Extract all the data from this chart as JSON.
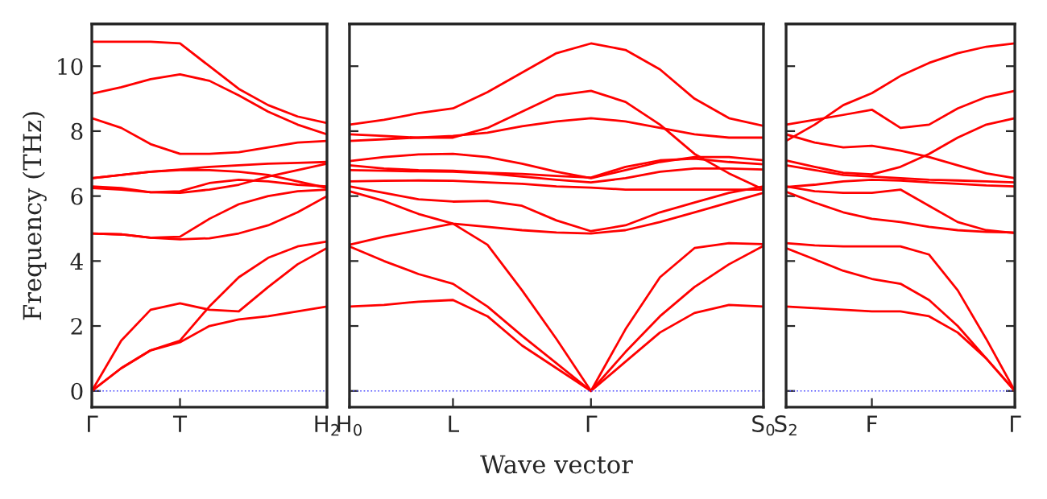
{
  "chart_data": [
    {
      "type": "line",
      "ylabel": "Frequency (THz)",
      "categories": [
        "Γ",
        null,
        null,
        "T",
        null,
        null,
        null,
        null,
        "H$_{2}$"
      ],
      "ylim": [
        -0.5,
        11.3
      ],
      "yticks": [
        0,
        2,
        4,
        6,
        8,
        10
      ],
      "ref_lines": [
        {
          "axis": "y",
          "value": 0,
          "color": "#4444ff",
          "line_style": "dotted"
        }
      ],
      "grid": false,
      "marker": "none",
      "line_style": "solid",
      "series": [
        {
          "color": "#ff0000",
          "values": [
            0,
            0.7,
            1.25,
            1.5,
            2.0,
            2.2,
            2.3,
            2.45,
            2.6
          ]
        },
        {
          "color": "#ff0000",
          "values": [
            0,
            0.7,
            1.25,
            1.55,
            2.6,
            3.5,
            4.1,
            4.45,
            4.6
          ]
        },
        {
          "color": "#ff0000",
          "values": [
            0,
            1.55,
            2.5,
            2.7,
            2.5,
            2.45,
            3.2,
            3.9,
            4.4
          ]
        },
        {
          "color": "#ff0000",
          "values": [
            4.85,
            4.82,
            4.72,
            4.67,
            4.7,
            4.85,
            5.1,
            5.5,
            6.0
          ]
        },
        {
          "color": "#ff0000",
          "values": [
            4.85,
            4.82,
            4.72,
            4.75,
            5.3,
            5.75,
            6.0,
            6.15,
            6.2
          ]
        },
        {
          "color": "#ff0000",
          "values": [
            6.25,
            6.2,
            6.12,
            6.15,
            6.4,
            6.5,
            6.45,
            6.35,
            6.3
          ]
        },
        {
          "color": "#ff0000",
          "values": [
            6.3,
            6.25,
            6.12,
            6.1,
            6.2,
            6.35,
            6.6,
            6.8,
            7.0
          ]
        },
        {
          "color": "#ff0000",
          "values": [
            6.55,
            6.65,
            6.75,
            6.8,
            6.8,
            6.75,
            6.65,
            6.45,
            6.25
          ]
        },
        {
          "color": "#ff0000",
          "values": [
            6.55,
            6.65,
            6.75,
            6.82,
            6.9,
            6.95,
            7.0,
            7.02,
            7.05
          ]
        },
        {
          "color": "#ff0000",
          "values": [
            8.4,
            8.1,
            7.6,
            7.3,
            7.3,
            7.35,
            7.5,
            7.65,
            7.7
          ]
        },
        {
          "color": "#ff0000",
          "values": [
            9.15,
            9.35,
            9.6,
            9.75,
            9.55,
            9.1,
            8.6,
            8.2,
            7.9
          ]
        },
        {
          "color": "#ff0000",
          "values": [
            10.75,
            10.75,
            10.75,
            10.7,
            10.0,
            9.3,
            8.8,
            8.45,
            8.25
          ]
        }
      ]
    },
    {
      "type": "line",
      "xlabel": "Wave vector",
      "categories": [
        "H$_{0}$",
        null,
        null,
        "L",
        null,
        null,
        null,
        "Γ",
        null,
        null,
        null,
        null,
        "S$_{0}$"
      ],
      "ylim": [
        -0.5,
        11.3
      ],
      "yticks": [
        0,
        2,
        4,
        6,
        8,
        10
      ],
      "tick_labels": "x",
      "ref_lines": [
        {
          "axis": "y",
          "value": 0,
          "color": "#4444ff",
          "line_style": "dotted"
        }
      ],
      "grid": false,
      "marker": "none",
      "line_style": "solid",
      "series": [
        {
          "color": "#ff0000",
          "values": [
            2.6,
            2.65,
            2.75,
            2.8,
            2.3,
            1.4,
            0.7,
            0,
            0.9,
            1.8,
            2.4,
            2.65,
            2.6
          ]
        },
        {
          "color": "#ff0000",
          "values": [
            4.45,
            4.0,
            3.6,
            3.3,
            2.6,
            1.7,
            0.85,
            0,
            1.2,
            2.3,
            3.2,
            3.9,
            4.47
          ]
        },
        {
          "color": "#ff0000",
          "values": [
            4.5,
            4.75,
            4.95,
            5.15,
            4.5,
            3.1,
            1.6,
            0,
            1.9,
            3.5,
            4.4,
            4.55,
            4.52
          ]
        },
        {
          "color": "#ff0000",
          "values": [
            6.15,
            5.85,
            5.45,
            5.15,
            5.05,
            4.95,
            4.88,
            4.85,
            4.95,
            5.2,
            5.5,
            5.8,
            6.1
          ]
        },
        {
          "color": "#ff0000",
          "values": [
            6.3,
            6.1,
            5.9,
            5.83,
            5.85,
            5.7,
            5.25,
            4.92,
            5.1,
            5.5,
            5.8,
            6.1,
            6.3
          ]
        },
        {
          "color": "#ff0000",
          "values": [
            6.45,
            6.47,
            6.48,
            6.47,
            6.42,
            6.38,
            6.3,
            6.26,
            6.2,
            6.2,
            6.2,
            6.2,
            6.2
          ]
        },
        {
          "color": "#ff0000",
          "values": [
            6.8,
            6.78,
            6.76,
            6.75,
            6.7,
            6.6,
            6.5,
            6.42,
            6.55,
            6.75,
            6.85,
            6.85,
            6.82
          ]
        },
        {
          "color": "#ff0000",
          "values": [
            7.08,
            7.2,
            7.28,
            7.3,
            7.2,
            7.0,
            6.75,
            6.55,
            6.8,
            7.05,
            7.2,
            7.2,
            7.1
          ]
        },
        {
          "color": "#ff0000",
          "values": [
            6.95,
            6.85,
            6.8,
            6.78,
            6.72,
            6.68,
            6.62,
            6.57,
            6.9,
            7.1,
            7.15,
            7.05,
            6.98
          ]
        },
        {
          "color": "#ff0000",
          "values": [
            7.7,
            7.75,
            7.8,
            7.85,
            7.95,
            8.15,
            8.3,
            8.4,
            8.3,
            8.1,
            7.9,
            7.8,
            7.8
          ]
        },
        {
          "color": "#ff0000",
          "values": [
            7.9,
            7.85,
            7.8,
            7.8,
            8.1,
            8.6,
            9.1,
            9.24,
            8.9,
            8.2,
            7.3,
            6.7,
            6.2
          ]
        },
        {
          "color": "#ff0000",
          "values": [
            8.2,
            8.35,
            8.55,
            8.7,
            9.2,
            9.8,
            10.4,
            10.7,
            10.5,
            9.9,
            9.0,
            8.4,
            8.16
          ]
        }
      ]
    },
    {
      "type": "line",
      "categories": [
        "S$_{2}$",
        null,
        null,
        "F",
        null,
        null,
        null,
        null,
        "Γ"
      ],
      "ylim": [
        -0.5,
        11.3
      ],
      "yticks": [
        0,
        2,
        4,
        6,
        8,
        10
      ],
      "tick_labels": "x",
      "ref_lines": [
        {
          "axis": "y",
          "value": 0,
          "color": "#4444ff",
          "line_style": "dotted"
        }
      ],
      "grid": false,
      "marker": "none",
      "line_style": "solid",
      "series": [
        {
          "color": "#ff0000",
          "values": [
            2.6,
            2.55,
            2.5,
            2.45,
            2.45,
            2.3,
            1.8,
            1.0,
            0
          ]
        },
        {
          "color": "#ff0000",
          "values": [
            4.4,
            4.05,
            3.7,
            3.45,
            3.3,
            2.8,
            2.0,
            1.0,
            0
          ]
        },
        {
          "color": "#ff0000",
          "values": [
            4.55,
            4.48,
            4.45,
            4.45,
            4.45,
            4.2,
            3.1,
            1.6,
            0
          ]
        },
        {
          "color": "#ff0000",
          "values": [
            6.13,
            5.8,
            5.5,
            5.3,
            5.2,
            5.05,
            4.95,
            4.9,
            4.88
          ]
        },
        {
          "color": "#ff0000",
          "values": [
            6.3,
            6.15,
            6.1,
            6.1,
            6.2,
            5.7,
            5.2,
            4.95,
            4.86
          ]
        },
        {
          "color": "#ff0000",
          "values": [
            6.28,
            6.35,
            6.45,
            6.5,
            6.48,
            6.42,
            6.38,
            6.33,
            6.3
          ]
        },
        {
          "color": "#ff0000",
          "values": [
            6.95,
            6.8,
            6.65,
            6.6,
            6.55,
            6.5,
            6.48,
            6.45,
            6.42
          ]
        },
        {
          "color": "#ff0000",
          "values": [
            7.1,
            6.9,
            6.72,
            6.67,
            6.9,
            7.3,
            7.8,
            8.2,
            8.4
          ]
        },
        {
          "color": "#ff0000",
          "values": [
            7.9,
            7.65,
            7.5,
            7.55,
            7.4,
            7.2,
            6.95,
            6.7,
            6.55
          ]
        },
        {
          "color": "#ff0000",
          "values": [
            8.2,
            8.35,
            8.5,
            8.66,
            8.1,
            8.2,
            8.7,
            9.05,
            9.24
          ]
        },
        {
          "color": "#ff0000",
          "values": [
            7.7,
            8.2,
            8.8,
            9.17,
            9.7,
            10.1,
            10.4,
            10.6,
            10.7
          ]
        }
      ]
    }
  ]
}
